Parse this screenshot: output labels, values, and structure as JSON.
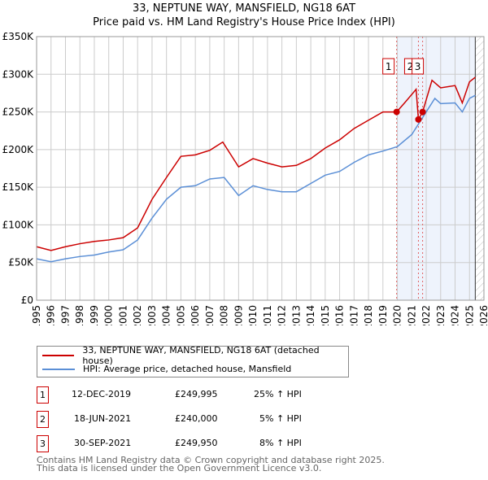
{
  "title": "33, NEPTUNE WAY, MANSFIELD, NG18 6AT",
  "subtitle": "Price paid vs. HM Land Registry's House Price Index (HPI)",
  "chart_data": {
    "type": "line",
    "title": "33, NEPTUNE WAY, MANSFIELD, NG18 6AT",
    "ylim": [
      0,
      350000
    ],
    "xlim": [
      1995,
      2026
    ],
    "y_ticks": [
      0,
      50000,
      100000,
      150000,
      200000,
      250000,
      300000,
      350000
    ],
    "y_tick_labels": [
      "£0",
      "£50K",
      "£100K",
      "£150K",
      "£200K",
      "£250K",
      "£300K",
      "£350K"
    ],
    "x_ticks": [
      1995,
      1996,
      1997,
      1998,
      1999,
      2000,
      2001,
      2002,
      2003,
      2004,
      2005,
      2006,
      2007,
      2008,
      2009,
      2010,
      2011,
      2012,
      2013,
      2014,
      2015,
      2016,
      2017,
      2018,
      2019,
      2020,
      2021,
      2022,
      2023,
      2024,
      2025,
      2026
    ],
    "colors": {
      "property": "#cc0000",
      "hpi": "#5b8fd6"
    },
    "series": [
      {
        "name": "33, NEPTUNE WAY, MANSFIELD, NG18 6AT (detached house)",
        "x": [
          1995,
          1996,
          1997,
          1998,
          1999,
          2000,
          2001,
          2002,
          2003,
          2004,
          2005,
          2006,
          2007,
          2007.9,
          2009,
          2010,
          2011,
          2012,
          2013,
          2014,
          2015,
          2016,
          2017,
          2018,
          2019,
          2019.95,
          2020.5,
          2021.3,
          2021.46,
          2021.75,
          2022.4,
          2023,
          2024,
          2024.5,
          2025,
          2025.4
        ],
        "y": [
          71000,
          66000,
          71000,
          75000,
          78000,
          80000,
          83000,
          96000,
          134000,
          163000,
          191000,
          193000,
          199000,
          210000,
          177000,
          188000,
          182000,
          177000,
          179000,
          188000,
          202000,
          213000,
          228000,
          239000,
          250000,
          249995,
          262000,
          280000,
          240000,
          249950,
          292000,
          282000,
          285000,
          262000,
          290000,
          296000
        ]
      },
      {
        "name": "HPI: Average price, detached house, Mansfield",
        "x": [
          1995,
          1996,
          1997,
          1998,
          1999,
          2000,
          2001,
          2002,
          2003,
          2004,
          2005,
          2006,
          2007,
          2008,
          2009,
          2010,
          2011,
          2012,
          2013,
          2014,
          2015,
          2016,
          2017,
          2018,
          2019,
          2020,
          2021,
          2022,
          2022.6,
          2023,
          2024,
          2024.5,
          2025,
          2025.4
        ],
        "y": [
          55000,
          51000,
          55000,
          58000,
          60000,
          64000,
          67000,
          80000,
          109000,
          134000,
          150000,
          152000,
          161000,
          163000,
          139000,
          152000,
          147000,
          144000,
          144000,
          155000,
          166000,
          171000,
          183000,
          193000,
          198000,
          204000,
          220000,
          250000,
          268000,
          261000,
          262000,
          250000,
          268000,
          272000
        ]
      }
    ],
    "sales": [
      {
        "label": "1",
        "x": 2019.95,
        "y": 249995
      },
      {
        "label": "2",
        "x": 2021.46,
        "y": 240000
      },
      {
        "label": "3",
        "x": 2021.75,
        "y": 249950
      }
    ],
    "legend": "below"
  },
  "legend": [
    "33, NEPTUNE WAY, MANSFIELD, NG18 6AT (detached house)",
    "HPI: Average price, detached house, Mansfield"
  ],
  "transactions": [
    {
      "n": "1",
      "date": "12-DEC-2019",
      "price": "£249,995",
      "hpi": "25% ↑ HPI"
    },
    {
      "n": "2",
      "date": "18-JUN-2021",
      "price": "£240,000",
      "hpi": "5% ↑ HPI"
    },
    {
      "n": "3",
      "date": "30-SEP-2021",
      "price": "£249,950",
      "hpi": "8% ↑ HPI"
    }
  ],
  "footer": [
    "Contains HM Land Registry data © Crown copyright and database right 2025.",
    "This data is licensed under the Open Government Licence v3.0."
  ]
}
